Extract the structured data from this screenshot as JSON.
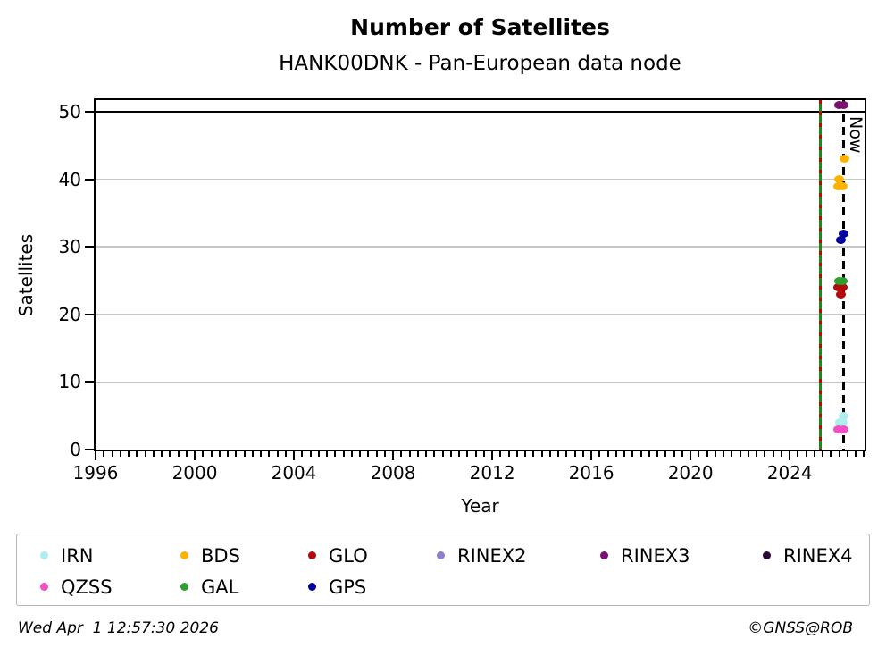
{
  "title": "Number of Satellites",
  "subtitle": "HANK00DNK - Pan-European data node",
  "footer": {
    "timestamp": "Wed Apr  1 12:57:30 2026",
    "credit": "©GNSS@ROB"
  },
  "chart_data": {
    "type": "scatter",
    "title": "Number of Satellites",
    "subtitle": "HANK00DNK - Pan-European data node",
    "xlabel": "Year",
    "ylabel": "Satellites",
    "xlim": [
      1996,
      2027.02
    ],
    "ylim": [
      0,
      51.72
    ],
    "xticks": [
      1996,
      2000,
      2004,
      2008,
      2012,
      2016,
      2020,
      2024
    ],
    "minor_xtick_step_years": 0.3333,
    "yticks": [
      0,
      10,
      20,
      30,
      40,
      50
    ],
    "grid": "horizontal",
    "dark_gridline_at": 50,
    "grid_color": "#c6c6c6",
    "legend_position": "bottom",
    "now_line": {
      "x": 2026.19,
      "label": "Now",
      "color": "#000000",
      "style": "dashed"
    },
    "start_line": {
      "x": 2025.24,
      "color_solid": "#188a18",
      "color_dash": "#cc0000",
      "style": "solid green with red dashes"
    },
    "series": [
      {
        "name": "IRN",
        "color": "#afeeee",
        "points": [
          [
            2026.17,
            5
          ],
          [
            2026.03,
            4
          ],
          [
            2026.13,
            4
          ]
        ]
      },
      {
        "name": "BDS",
        "color": "#ffb300",
        "points": [
          [
            2026.2,
            43
          ],
          [
            2026.0,
            40
          ],
          [
            2025.97,
            39
          ],
          [
            2026.14,
            39
          ]
        ]
      },
      {
        "name": "GLO",
        "color": "#b40a0a",
        "points": [
          [
            2025.97,
            24
          ],
          [
            2026.12,
            24
          ],
          [
            2026.05,
            23
          ]
        ]
      },
      {
        "name": "RINEX2",
        "color": "#8c80ce",
        "points": []
      },
      {
        "name": "RINEX3",
        "color": "#7b1070",
        "points": [
          [
            2025.99,
            51
          ],
          [
            2026.17,
            51
          ]
        ]
      },
      {
        "name": "RINEX4",
        "color": "#2a0838",
        "points": []
      },
      {
        "name": "QZSS",
        "color": "#f44fc4",
        "points": [
          [
            2025.97,
            3
          ],
          [
            2026.17,
            3
          ]
        ]
      },
      {
        "name": "GAL",
        "color": "#2e9e2e",
        "points": [
          [
            2025.98,
            25
          ],
          [
            2026.15,
            25
          ]
        ]
      },
      {
        "name": "GPS",
        "color": "#0000a0",
        "points": [
          [
            2026.16,
            32
          ],
          [
            2026.05,
            31
          ]
        ]
      }
    ]
  }
}
